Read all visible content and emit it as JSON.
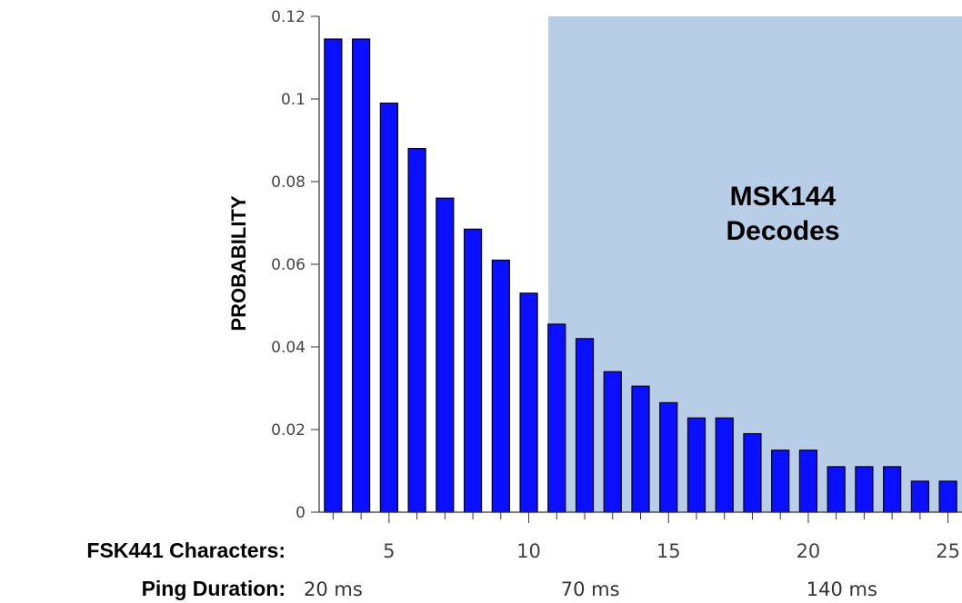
{
  "chart_data": {
    "type": "bar",
    "ylabel": "PROBABILITY",
    "ylim": [
      0,
      0.12
    ],
    "yticks": [
      0,
      0.02,
      0.04,
      0.06,
      0.08,
      0.1,
      0.12
    ],
    "ytick_labels": [
      "0",
      "0.02",
      "0.04",
      "0.06",
      "0.08",
      "0.1",
      "0.12"
    ],
    "xlim": [
      2.5,
      25.5
    ],
    "xticks": [
      5,
      10,
      15,
      20,
      25
    ],
    "xtick_labels": [
      "5",
      "10",
      "15",
      "20",
      "25"
    ],
    "x_row_label": "FSK441 Characters:",
    "x": [
      3,
      4,
      5,
      6,
      7,
      8,
      9,
      10,
      11,
      12,
      13,
      14,
      15,
      16,
      17,
      18,
      19,
      20,
      21,
      22,
      23,
      24,
      25
    ],
    "values": [
      0.1145,
      0.1145,
      0.099,
      0.088,
      0.076,
      0.0685,
      0.061,
      0.053,
      0.0455,
      0.042,
      0.034,
      0.0305,
      0.0265,
      0.0228,
      0.0228,
      0.019,
      0.015,
      0.015,
      0.011,
      0.011,
      0.011,
      0.0075,
      0.0075
    ],
    "bar_color": "#0a10ff",
    "region": {
      "label_lines": [
        "MSK144",
        "Decodes"
      ],
      "x_start": 10.7,
      "x_end": 25.5,
      "color": "#b8cde6"
    },
    "secondary_axis": {
      "label": "Ping Duration:",
      "ticks": [
        {
          "x": 3,
          "label": "20 ms"
        },
        {
          "x": 12.2,
          "label": "70 ms"
        },
        {
          "x": 21.2,
          "label": "140 ms"
        }
      ]
    }
  }
}
